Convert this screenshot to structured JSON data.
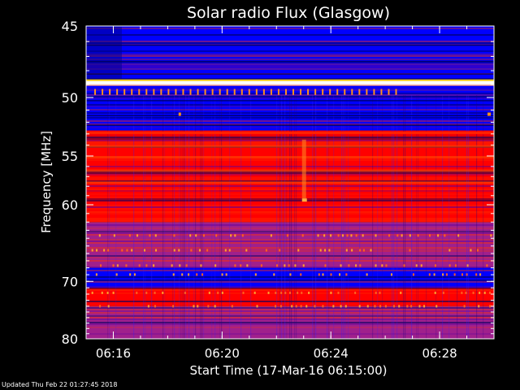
{
  "chart_data": {
    "type": "heatmap",
    "title": "Solar radio Flux (Glasgow)",
    "xlabel": "Start Time (17-Mar-16 06:15:00)",
    "ylabel": "Frequency [MHz]",
    "x_ticks": [
      "06:16",
      "06:20",
      "06:24",
      "06:28"
    ],
    "x_tick_minutes": [
      1,
      5,
      9,
      13
    ],
    "xlim_minutes": [
      0,
      15
    ],
    "y_ticks": [
      45,
      50,
      55,
      60,
      70,
      80
    ],
    "ylim": [
      45,
      80
    ],
    "y_scale": "reciprocal",
    "colormap": [
      "#000080",
      "#0000ff",
      "#ff0000",
      "#ffff00",
      "#ffffff"
    ],
    "bands": [
      {
        "from": 45,
        "to": 48.7,
        "level": "low"
      },
      {
        "from": 48.7,
        "to": 49.1,
        "level": "very high"
      },
      {
        "from": 49.1,
        "to": 52.7,
        "level": "low"
      },
      {
        "from": 52.7,
        "to": 53.1,
        "level": "high"
      },
      {
        "from": 53.1,
        "to": 62,
        "level": "high"
      },
      {
        "from": 62,
        "to": 68,
        "level": "medium"
      },
      {
        "from": 68,
        "to": 71,
        "level": "low"
      },
      {
        "from": 71,
        "to": 74,
        "level": "high"
      },
      {
        "from": 74,
        "to": 80,
        "level": "medium"
      }
    ],
    "grid": false,
    "legend": "none"
  },
  "footer": {
    "updated": "Updated Thu Feb 22 01:27:45 2018"
  }
}
